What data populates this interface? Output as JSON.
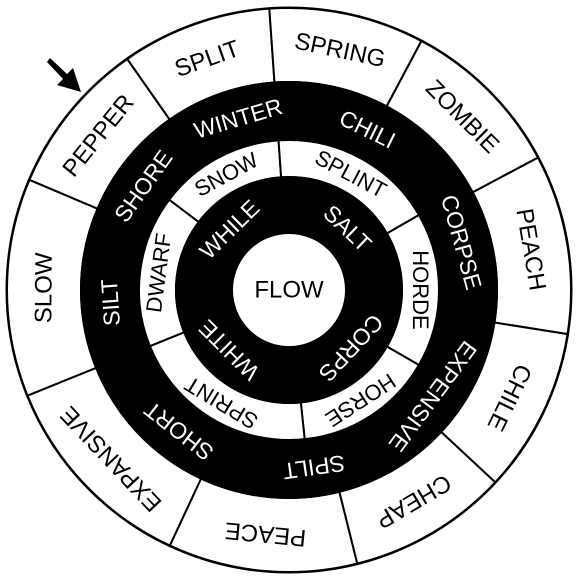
{
  "puzzle": {
    "center": "FLOW",
    "colors": {
      "black": "#000000",
      "white": "#ffffff"
    },
    "start_arrow_icon": "arrow-pointing-down-right",
    "rings": [
      {
        "name": "outer",
        "fill": "white",
        "words": [
          "SLOW",
          "PEPPER",
          "SPLIT",
          "SPRING",
          "ZOMBIE",
          "PEACH",
          "CHILE",
          "CHEAP",
          "PEACE",
          "EXPANSIVE"
        ]
      },
      {
        "name": "third",
        "words": [
          "SILT",
          "SHORE",
          "WINTER",
          "CHILI",
          "CORPSE",
          "EXPENSIVE",
          "SPILT",
          "SHORT"
        ],
        "fills": [
          "black",
          "black",
          "black",
          "black",
          "black",
          "black",
          "black",
          "black"
        ]
      },
      {
        "name": "second",
        "fill": "white",
        "words": [
          "DWARF",
          "SNOW",
          "SPLINT",
          "HORDE",
          "HORSE",
          "SPRINT"
        ]
      },
      {
        "name": "inner",
        "fill": "black",
        "words": [
          "WHILE",
          "SALT",
          "CORPS",
          "WHITE"
        ]
      }
    ]
  }
}
